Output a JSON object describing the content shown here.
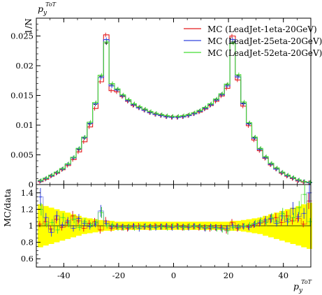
{
  "header": {
    "title_main": "p",
    "title_sub": "y",
    "title_sup": "ToT"
  },
  "chart_data": [
    {
      "type": "line",
      "panel": "main",
      "ylabel": "1/N",
      "xlim": [
        -50,
        50
      ],
      "ylim": [
        0,
        0.028
      ],
      "yticks": [
        "0",
        "0.005",
        "0.01",
        "0.015",
        "0.02",
        "0.025"
      ],
      "yticks_values": [
        0,
        0.005,
        0.01,
        0.015,
        0.02,
        0.025
      ],
      "x": [
        -48.5,
        -46.5,
        -44.5,
        -42.5,
        -40.5,
        -38.5,
        -36.5,
        -34.5,
        -32.5,
        -30.5,
        -28.5,
        -26.5,
        -24.5,
        -22.5,
        -20.5,
        -18.5,
        -16.5,
        -14.5,
        -12.5,
        -10.5,
        -8.5,
        -6.5,
        -4.5,
        -2.5,
        -0.5,
        1.5,
        3.5,
        5.5,
        7.5,
        9.5,
        11.5,
        13.5,
        15.5,
        17.5,
        19.5,
        21.5,
        23.5,
        25.5,
        27.5,
        29.5,
        31.5,
        33.5,
        35.5,
        37.5,
        39.5,
        41.5,
        43.5,
        45.5,
        47.5,
        49.5
      ],
      "data_points": [
        0.0006,
        0.001,
        0.0015,
        0.002,
        0.0026,
        0.0034,
        0.0045,
        0.0059,
        0.0078,
        0.0102,
        0.0135,
        0.0182,
        0.0238,
        0.0168,
        0.016,
        0.015,
        0.0142,
        0.0135,
        0.013,
        0.0126,
        0.0122,
        0.0119,
        0.0117,
        0.0115,
        0.0114,
        0.0114,
        0.0115,
        0.0117,
        0.012,
        0.0124,
        0.0129,
        0.0135,
        0.0143,
        0.0152,
        0.0168,
        0.024,
        0.0183,
        0.0137,
        0.0103,
        0.0079,
        0.006,
        0.0046,
        0.0035,
        0.0027,
        0.002,
        0.0015,
        0.0011,
        0.0007,
        0.0005,
        0.0003
      ],
      "series": [
        {
          "name": "MC (LeadJet-1eta-20GeV)",
          "color": "#e41a1c",
          "values": [
            0.0005,
            0.0009,
            0.0014,
            0.0019,
            0.0025,
            0.0032,
            0.0042,
            0.0055,
            0.0072,
            0.0097,
            0.0128,
            0.0173,
            0.0252,
            0.0158,
            0.0156,
            0.0148,
            0.014,
            0.0133,
            0.0129,
            0.0125,
            0.0121,
            0.0118,
            0.0116,
            0.0114,
            0.0113,
            0.0113,
            0.0114,
            0.0116,
            0.0119,
            0.0122,
            0.0127,
            0.0133,
            0.014,
            0.0149,
            0.0162,
            0.025,
            0.0176,
            0.0132,
            0.0099,
            0.0075,
            0.0057,
            0.0044,
            0.0033,
            0.0026,
            0.0019,
            0.0014,
            0.001,
            0.0006,
            0.0004,
            0.0003
          ]
        },
        {
          "name": "MC (LeadJet-25eta-20GeV)",
          "color": "#3344dd",
          "values": [
            0.0006,
            0.001,
            0.0015,
            0.002,
            0.0026,
            0.0034,
            0.0045,
            0.006,
            0.0079,
            0.0103,
            0.0136,
            0.018,
            0.0244,
            0.0166,
            0.0159,
            0.0149,
            0.0141,
            0.0134,
            0.0129,
            0.0125,
            0.0121,
            0.0118,
            0.0116,
            0.0114,
            0.0113,
            0.0113,
            0.0114,
            0.0116,
            0.0119,
            0.0123,
            0.0128,
            0.0134,
            0.0142,
            0.0151,
            0.0166,
            0.0244,
            0.0181,
            0.0136,
            0.0102,
            0.0078,
            0.0059,
            0.0045,
            0.0034,
            0.0026,
            0.002,
            0.0015,
            0.0011,
            0.0007,
            0.0005,
            0.0003
          ]
        },
        {
          "name": "MC (LeadJet-52eta-20GeV)",
          "color": "#44dd33",
          "values": [
            0.0007,
            0.0011,
            0.0016,
            0.0021,
            0.0027,
            0.0035,
            0.0046,
            0.0061,
            0.008,
            0.0105,
            0.0138,
            0.0184,
            0.024,
            0.017,
            0.0161,
            0.0151,
            0.0143,
            0.0136,
            0.0131,
            0.0127,
            0.0123,
            0.012,
            0.0118,
            0.0116,
            0.0115,
            0.0115,
            0.0116,
            0.0118,
            0.0121,
            0.0125,
            0.013,
            0.0136,
            0.0144,
            0.0153,
            0.0169,
            0.0238,
            0.0185,
            0.0139,
            0.0104,
            0.008,
            0.0061,
            0.0047,
            0.0036,
            0.0028,
            0.0021,
            0.0016,
            0.0012,
            0.0008,
            0.0005,
            0.0004
          ]
        }
      ]
    },
    {
      "type": "line",
      "panel": "ratio",
      "ylabel": "MC/data",
      "xlabel_main": "p",
      "xlabel_sub": "y",
      "xlabel_sup": "ToT",
      "xlim": [
        -50,
        50
      ],
      "ylim": [
        0.5,
        1.5
      ],
      "yticks": [
        "0.6",
        "0.8",
        "1",
        "1.2",
        "1.4"
      ],
      "yticks_values": [
        0.6,
        0.8,
        1.0,
        1.2,
        1.4
      ],
      "xticks": [
        "-40",
        "-20",
        "0",
        "20",
        "40"
      ],
      "xticks_values": [
        -40,
        -20,
        0,
        20,
        40
      ],
      "band_halfwidth": [
        0.26,
        0.24,
        0.22,
        0.2,
        0.18,
        0.16,
        0.14,
        0.12,
        0.1,
        0.09,
        0.08,
        0.07,
        0.06,
        0.06,
        0.05,
        0.05,
        0.05,
        0.05,
        0.05,
        0.05,
        0.05,
        0.05,
        0.05,
        0.05,
        0.05,
        0.05,
        0.05,
        0.05,
        0.05,
        0.05,
        0.05,
        0.05,
        0.05,
        0.05,
        0.05,
        0.06,
        0.06,
        0.07,
        0.08,
        0.09,
        0.1,
        0.12,
        0.14,
        0.16,
        0.18,
        0.2,
        0.22,
        0.24,
        0.26,
        0.28
      ],
      "series": [
        {
          "name": "MC (LeadJet-1eta-20GeV)",
          "color": "#e41a1c",
          "values": [
            1.02,
            1.05,
            0.96,
            1.08,
            0.98,
            1.04,
            1.12,
            1.06,
            0.97,
            1.03,
            1.05,
            0.95,
            1.06,
            0.97,
            0.99,
            0.98,
            0.97,
            0.99,
            1.0,
            0.99,
            0.98,
            1.0,
            0.99,
            0.99,
            0.99,
            1.0,
            0.98,
            0.99,
            0.99,
            0.98,
            0.98,
            0.97,
            0.98,
            0.98,
            0.95,
            1.04,
            0.97,
            1.0,
            0.99,
            1.01,
            1.03,
            1.05,
            1.08,
            1.1,
            1.04,
            1.12,
            1.06,
            1.09,
            1.02,
            1.3
          ]
        },
        {
          "name": "MC (LeadJet-25eta-20GeV)",
          "color": "#3344dd",
          "values": [
            1.35,
            1.1,
            0.92,
            1.12,
            1.01,
            1.06,
            0.97,
            1.09,
            1.03,
            0.99,
            1.02,
            1.18,
            1.03,
            0.99,
            1.0,
            0.99,
            0.98,
            1.0,
            0.97,
            0.99,
            0.99,
            0.98,
            0.99,
            1.0,
            0.98,
            0.99,
            0.99,
            0.98,
            1.0,
            0.99,
            0.97,
            0.99,
            0.98,
            0.97,
            0.97,
            1.0,
            0.98,
            0.99,
            0.98,
            1.02,
            1.04,
            1.07,
            1.09,
            1.03,
            1.12,
            1.05,
            1.21,
            1.11,
            1.15,
            1.4
          ]
        },
        {
          "name": "MC (LeadJet-52eta-20GeV)",
          "color": "#44dd33",
          "values": [
            1.2,
            1.02,
            1.04,
            0.95,
            1.1,
            1.02,
            1.08,
            0.98,
            1.05,
            1.01,
            1.04,
            1.16,
            1.0,
            1.01,
            0.98,
            0.98,
            0.99,
            0.98,
            0.99,
            1.0,
            0.98,
            0.99,
            0.99,
            0.98,
            1.0,
            0.99,
            0.98,
            1.0,
            0.99,
            0.99,
            0.98,
            0.98,
            0.97,
            0.96,
            0.94,
            0.98,
            0.99,
            1.0,
            1.01,
            1.03,
            1.06,
            1.04,
            1.1,
            1.05,
            1.15,
            1.08,
            1.1,
            1.22,
            1.38,
            1.05
          ]
        }
      ]
    }
  ]
}
